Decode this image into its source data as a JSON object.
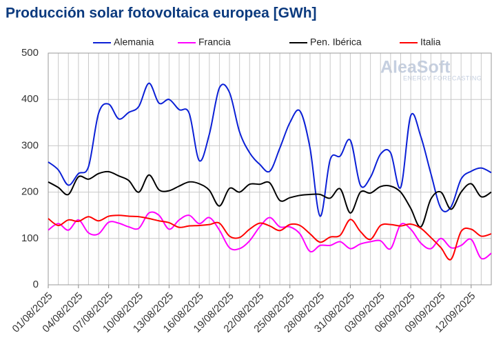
{
  "chart_data": {
    "type": "line",
    "title": "Producción solar fotovoltaica europea [GWh]",
    "watermark": {
      "brand": "AleaSoft",
      "tagline": "ENERGY FORECASTING"
    },
    "categories": [
      "01/08/2025",
      null,
      null,
      "04/08/2025",
      null,
      null,
      "07/08/2025",
      null,
      null,
      "10/08/2025",
      null,
      null,
      "13/08/2025",
      null,
      null,
      "16/08/2025",
      null,
      null,
      "19/08/2025",
      null,
      null,
      "22/08/2025",
      null,
      null,
      "25/08/2025",
      null,
      null,
      "28/08/2025",
      null,
      null,
      "31/08/2025",
      null,
      null,
      "03/09/2025",
      null,
      null,
      "06/09/2025",
      null,
      null,
      "09/09/2025",
      null,
      null,
      "12/09/2025",
      null,
      null
    ],
    "series": [
      {
        "name": "Alemania",
        "color": "#0a1fd6",
        "values": [
          265,
          248,
          215,
          240,
          255,
          370,
          390,
          358,
          372,
          385,
          435,
          392,
          400,
          378,
          370,
          268,
          325,
          425,
          415,
          330,
          285,
          260,
          245,
          295,
          350,
          375,
          295,
          148,
          270,
          278,
          312,
          215,
          232,
          282,
          285,
          210,
          365,
          320,
          240,
          165,
          168,
          228,
          245,
          252,
          242
        ]
      },
      {
        "name": "Francia",
        "color": "#ff00ff",
        "values": [
          118,
          132,
          118,
          140,
          112,
          110,
          135,
          133,
          125,
          122,
          155,
          150,
          120,
          140,
          150,
          132,
          145,
          118,
          80,
          78,
          95,
          125,
          145,
          125,
          125,
          110,
          72,
          85,
          85,
          93,
          78,
          88,
          93,
          95,
          78,
          130,
          120,
          90,
          78,
          100,
          80,
          85,
          98,
          57,
          68
        ]
      },
      {
        "name": "Pen. Ibérica",
        "color": "#000000",
        "values": [
          222,
          210,
          195,
          233,
          228,
          240,
          244,
          235,
          225,
          200,
          237,
          205,
          203,
          213,
          222,
          218,
          204,
          170,
          208,
          200,
          217,
          217,
          220,
          182,
          188,
          193,
          195,
          195,
          187,
          207,
          155,
          200,
          198,
          212,
          213,
          200,
          165,
          125,
          185,
          200,
          163,
          200,
          218,
          190,
          200
        ]
      },
      {
        "name": "Italia",
        "color": "#ff0000",
        "values": [
          143,
          128,
          140,
          137,
          147,
          138,
          148,
          150,
          148,
          147,
          143,
          138,
          134,
          124,
          127,
          128,
          130,
          133,
          105,
          102,
          120,
          133,
          127,
          117,
          130,
          128,
          110,
          92,
          103,
          107,
          141,
          115,
          98,
          128,
          130,
          127,
          131,
          122,
          102,
          80,
          55,
          115,
          120,
          105,
          110
        ]
      }
    ],
    "ylim": [
      0,
      500
    ],
    "yticks": [
      0,
      100,
      200,
      300,
      400,
      500
    ],
    "grid": true,
    "legend": "top"
  }
}
